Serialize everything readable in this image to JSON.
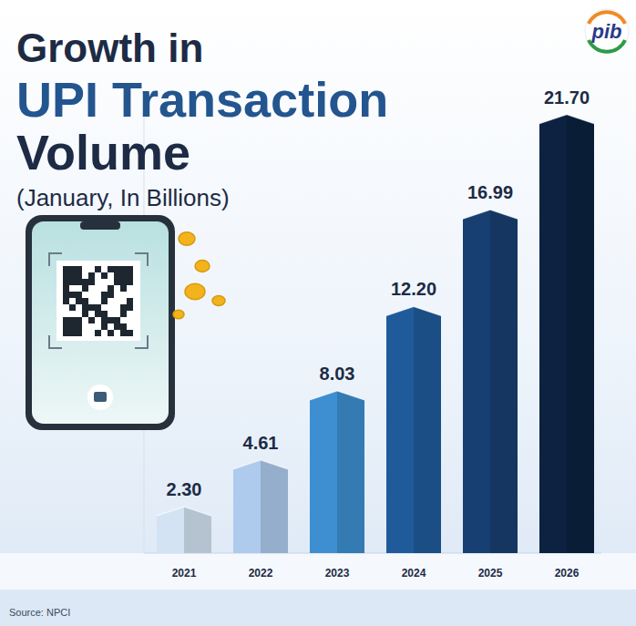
{
  "chart_data": {
    "type": "bar",
    "title": "Growth in UPI Transaction Volume",
    "subtitle": "(January, In Billions)",
    "categories": [
      "2021",
      "2022",
      "2023",
      "2024",
      "2025",
      "2026"
    ],
    "values": [
      2.3,
      4.61,
      8.03,
      12.2,
      16.99,
      21.7
    ],
    "value_labels": [
      "2.30",
      "4.61",
      "8.03",
      "12.20",
      "16.99",
      "21.70"
    ],
    "colors": [
      "#d3e3f4",
      "#aecbee",
      "#3d8fd1",
      "#1f5b9a",
      "#183f72",
      "#0c2240"
    ],
    "ylim": [
      0,
      22
    ],
    "data_labels": true,
    "tick_labels": "x",
    "grid": false,
    "source": "Source: NPCI",
    "logo": "pib"
  }
}
